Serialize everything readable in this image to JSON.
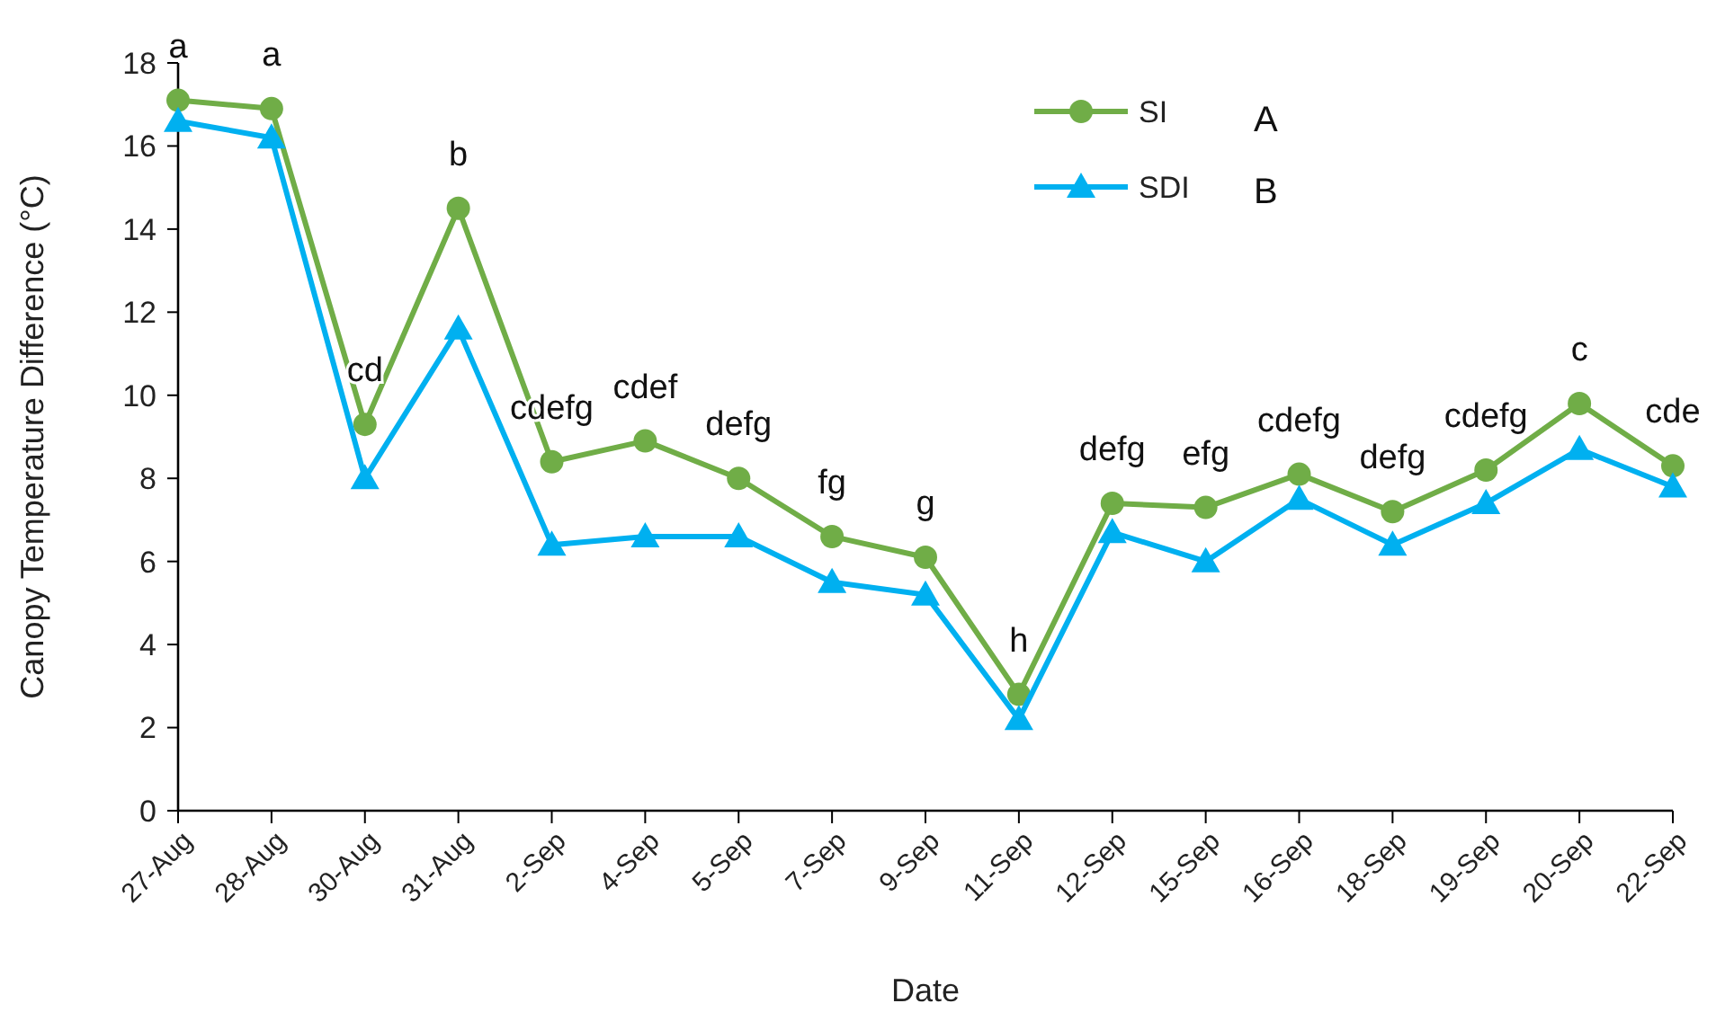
{
  "chart_data": {
    "type": "line",
    "xlabel": "Date",
    "ylabel": "Canopy Temperature Difference (°C)",
    "categories": [
      "27-Aug",
      "28-Aug",
      "30-Aug",
      "31-Aug",
      "2-Sep",
      "4-Sep",
      "5-Sep",
      "7-Sep",
      "9-Sep",
      "11-Sep",
      "12-Sep",
      "15-Sep",
      "16-Sep",
      "18-Sep",
      "19-Sep",
      "20-Sep",
      "22-Sep"
    ],
    "series": [
      {
        "name": "SI",
        "color": "#70ad47",
        "marker": "circle",
        "values": [
          17.1,
          16.9,
          9.3,
          14.5,
          8.4,
          8.9,
          8.0,
          6.6,
          6.1,
          2.8,
          7.4,
          7.3,
          8.1,
          7.2,
          8.2,
          9.8,
          8.3
        ]
      },
      {
        "name": "SDI",
        "color": "#00b0f0",
        "marker": "triangle",
        "values": [
          16.6,
          16.2,
          8.0,
          11.6,
          6.4,
          6.6,
          6.6,
          5.5,
          5.2,
          2.2,
          6.7,
          6.0,
          7.5,
          6.4,
          7.4,
          8.7,
          7.8
        ]
      }
    ],
    "ylim": [
      0,
      18
    ],
    "yticks": [
      0,
      2,
      4,
      6,
      8,
      10,
      12,
      14,
      16,
      18
    ],
    "grid": false,
    "legend": "top",
    "line_style": "solid",
    "annotations": [
      {
        "text": "a",
        "x": "27-Aug",
        "y": 17.1
      },
      {
        "text": "a",
        "x": "28-Aug",
        "y": 16.9
      },
      {
        "text": "cd",
        "x": "30-Aug",
        "y": 9.3
      },
      {
        "text": "b",
        "x": "31-Aug",
        "y": 14.5
      },
      {
        "text": "cdefg",
        "x": "2-Sep",
        "y": 8.4
      },
      {
        "text": "cdef",
        "x": "4-Sep",
        "y": 8.9
      },
      {
        "text": "defg",
        "x": "5-Sep",
        "y": 8.0
      },
      {
        "text": "fg",
        "x": "7-Sep",
        "y": 6.6
      },
      {
        "text": "g",
        "x": "9-Sep",
        "y": 6.1
      },
      {
        "text": "h",
        "x": "11-Sep",
        "y": 2.8
      },
      {
        "text": "defg",
        "x": "12-Sep",
        "y": 7.4
      },
      {
        "text": "efg",
        "x": "15-Sep",
        "y": 7.3
      },
      {
        "text": "cdefg",
        "x": "16-Sep",
        "y": 8.1
      },
      {
        "text": "defg",
        "x": "18-Sep",
        "y": 7.2
      },
      {
        "text": "cdefg",
        "x": "19-Sep",
        "y": 8.2
      },
      {
        "text": "c",
        "x": "20-Sep",
        "y": 9.8
      },
      {
        "text": "cde",
        "x": "22-Sep",
        "y": 8.3
      },
      "A",
      "B"
    ]
  }
}
